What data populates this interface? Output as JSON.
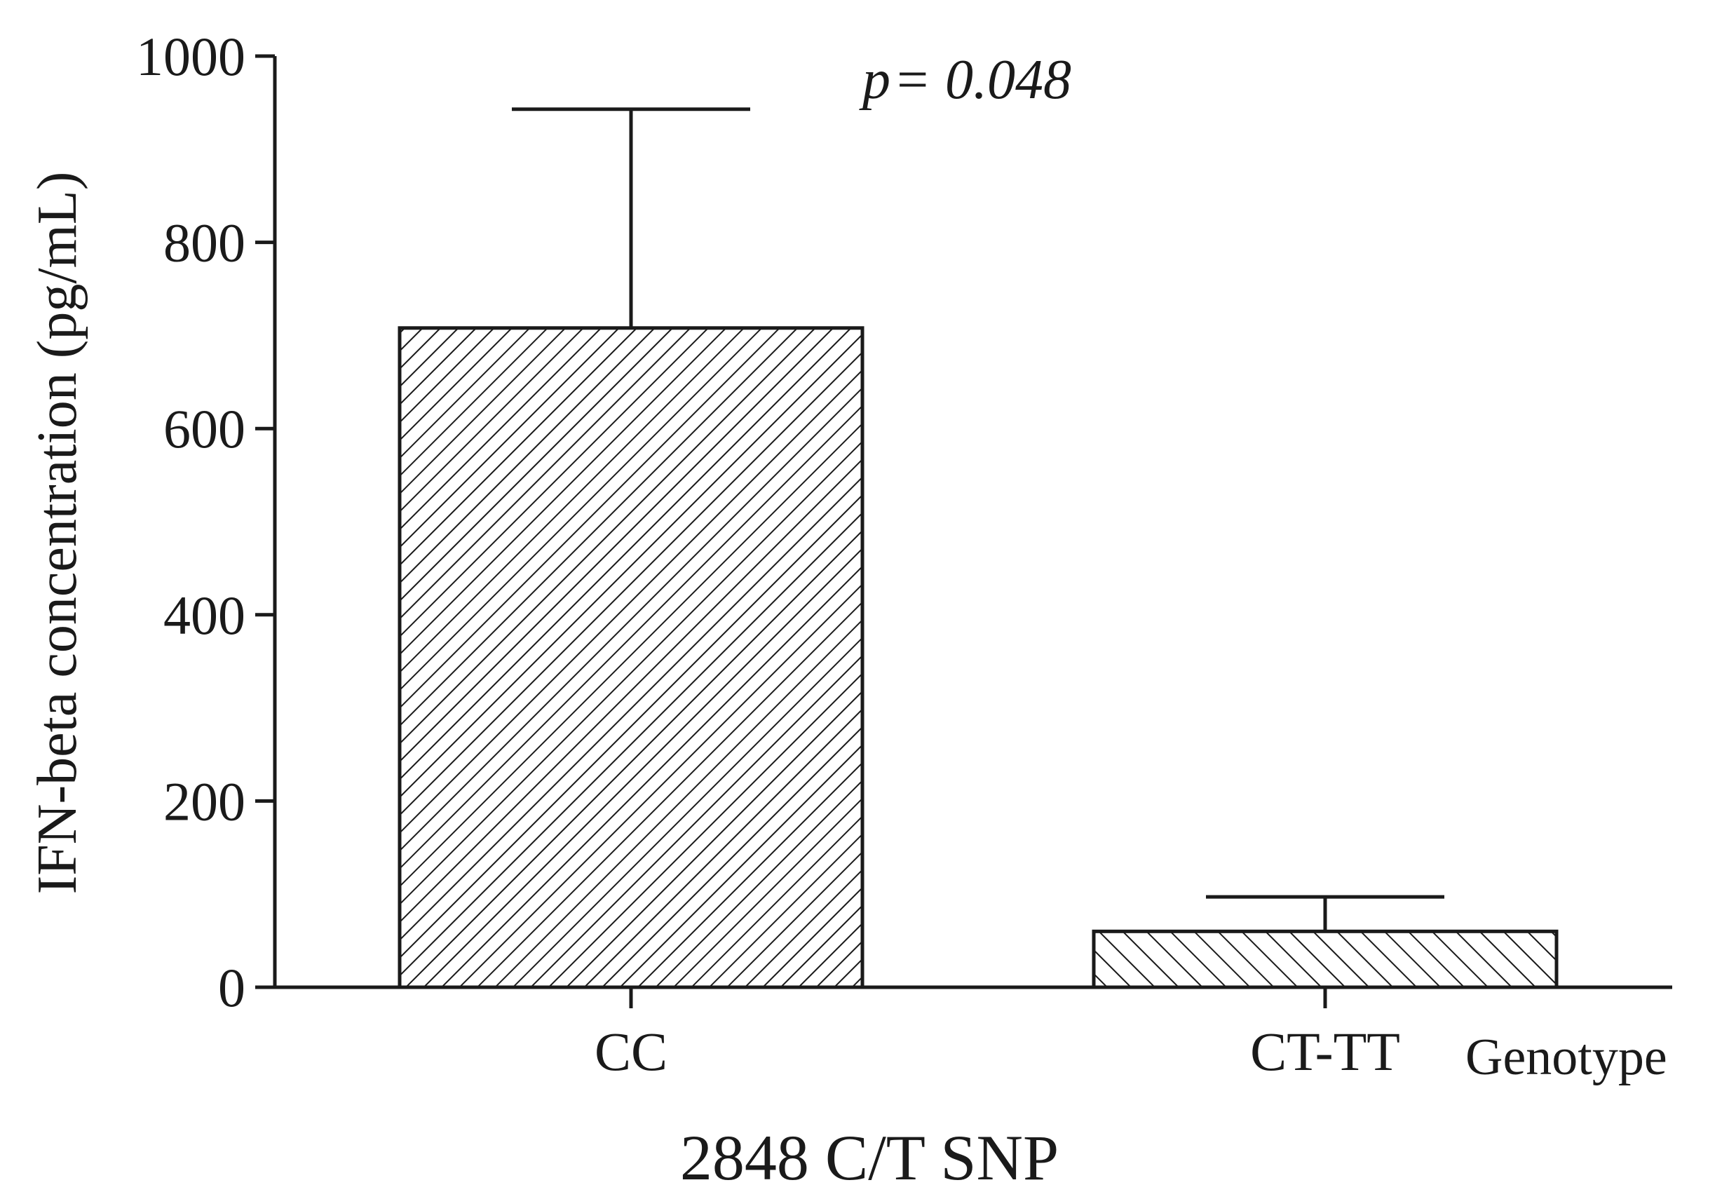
{
  "chart_data": {
    "type": "bar",
    "categories": [
      "CC",
      "CT-TT"
    ],
    "values": [
      708,
      60
    ],
    "error_upper": [
      943,
      97
    ],
    "ylabel": "IFN-beta concentration (pg/mL)",
    "xlabel": "2848 C/T SNP",
    "x_axis_end_label": "Genotype",
    "annotation": {
      "prefix": "p",
      "text": "= 0.048"
    },
    "ylim": [
      0,
      1000
    ],
    "yticks": [
      0,
      200,
      400,
      600,
      800,
      1000
    ],
    "grid": false,
    "legend": "none",
    "colors": {
      "bar_fill": "#ffffff",
      "stroke": "#1a1a1a"
    },
    "patterns": [
      "hatch-dense",
      "hatch-sparse"
    ]
  }
}
